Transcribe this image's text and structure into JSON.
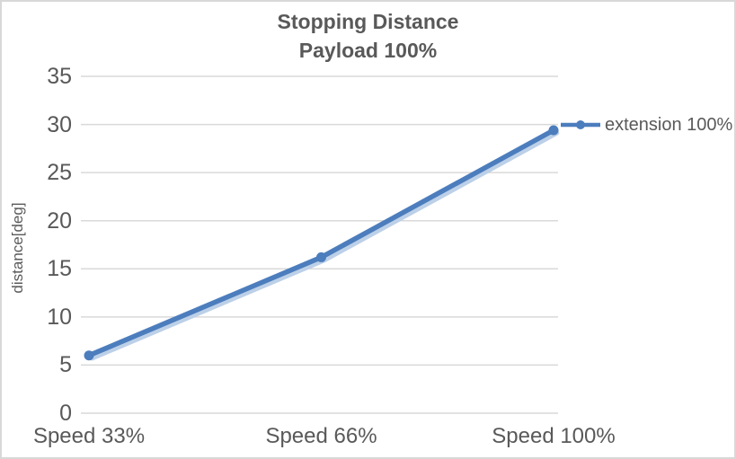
{
  "chart": {
    "title_line1": "Stopping Distance",
    "title_line2": "Payload 100%",
    "y_axis_title": "distance[deg]"
  },
  "chart_data": {
    "type": "line",
    "title": "Stopping Distance",
    "subtitle": "Payload 100%",
    "categories": [
      "Speed 33%",
      "Speed 66%",
      "Speed 100%"
    ],
    "series": [
      {
        "name": "extension 100%",
        "values": [
          6.0,
          16.2,
          29.4
        ]
      }
    ],
    "xlabel": "",
    "ylabel": "distance[deg]",
    "ylim": [
      0,
      35
    ],
    "y_ticks": [
      0,
      5,
      10,
      15,
      20,
      25,
      30,
      35
    ],
    "grid": true,
    "legend_position": "right",
    "marker": "circle",
    "colors": {
      "series": "#4C7DBD",
      "series_shadow": "#BCD0E8",
      "gridline": "#D9D9D9",
      "text": "#595959"
    }
  }
}
